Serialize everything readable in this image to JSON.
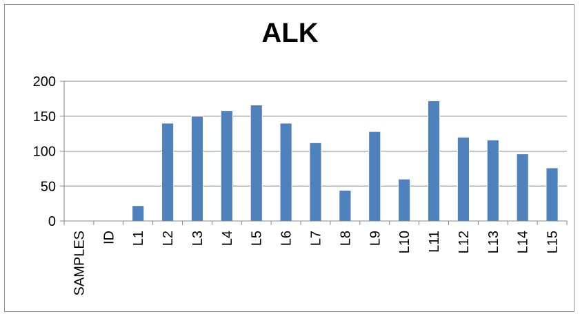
{
  "chart_data": {
    "type": "bar",
    "title": "ALK",
    "categories": [
      "SAMPLES",
      "ID",
      "L1",
      "L2",
      "L3",
      "L4",
      "L5",
      "L6",
      "L7",
      "L8",
      "L9",
      "L10",
      "L11",
      "L12",
      "L13",
      "L14",
      "L15"
    ],
    "values": [
      null,
      null,
      22,
      140,
      150,
      158,
      166,
      140,
      112,
      44,
      128,
      60,
      172,
      120,
      116,
      96,
      76
    ],
    "xlabel": "",
    "ylabel": "",
    "ylim": [
      0,
      200
    ],
    "yticks": [
      0,
      50,
      100,
      150,
      200
    ],
    "grid": true,
    "legend": "none",
    "colors": {
      "bar": "#4f81bd",
      "bar_edge": "#ffffff",
      "grid": "#868686",
      "axis": "#868686"
    }
  }
}
